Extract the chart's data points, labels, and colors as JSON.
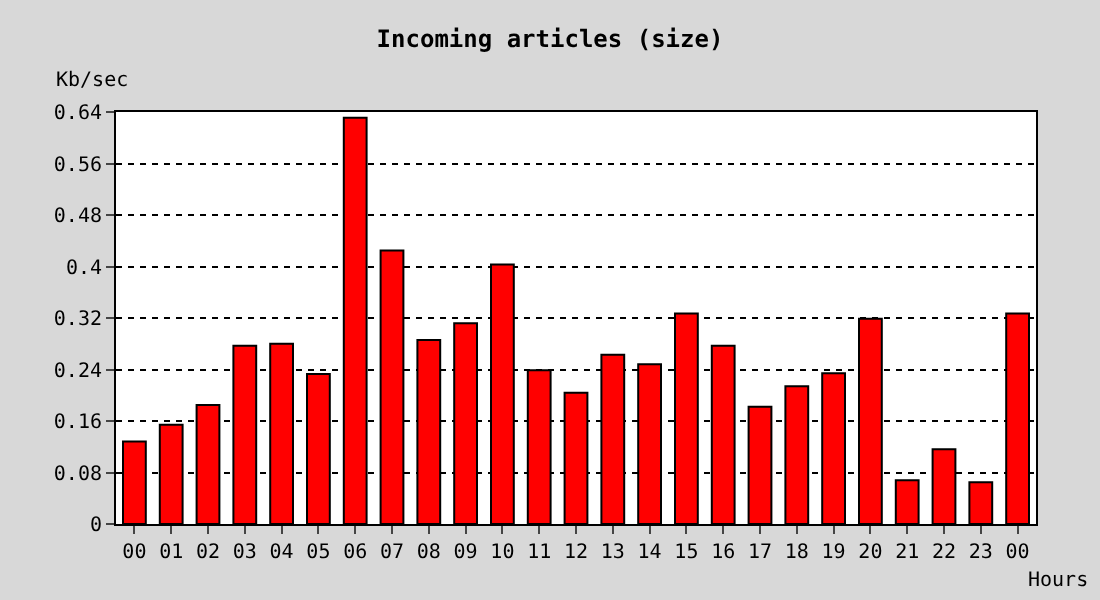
{
  "chart_data": {
    "type": "bar",
    "title": "Incoming articles (size)",
    "xlabel": "Hours",
    "ylabel": "Kb/sec",
    "categories": [
      "00",
      "01",
      "02",
      "03",
      "04",
      "05",
      "06",
      "07",
      "08",
      "09",
      "10",
      "11",
      "12",
      "13",
      "14",
      "15",
      "16",
      "17",
      "18",
      "19",
      "20",
      "21",
      "22",
      "23",
      "00"
    ],
    "values": [
      0.128,
      0.154,
      0.185,
      0.277,
      0.28,
      0.233,
      0.631,
      0.425,
      0.286,
      0.312,
      0.403,
      0.239,
      0.204,
      0.263,
      0.248,
      0.327,
      0.277,
      0.182,
      0.214,
      0.234,
      0.319,
      0.068,
      0.116,
      0.065,
      0.327
    ],
    "color": "#ff0000",
    "ylim": [
      0,
      0.64
    ],
    "yticks": [
      0,
      0.08,
      0.16,
      0.24,
      0.32,
      0.4,
      0.48,
      0.56,
      0.64
    ],
    "grid": "y",
    "legend": false
  }
}
